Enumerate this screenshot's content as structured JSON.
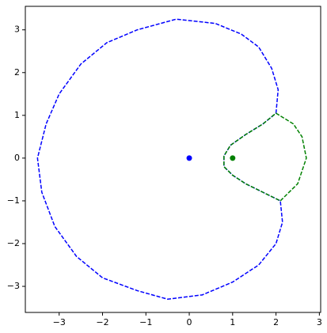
{
  "chart_data": {
    "type": "line",
    "xlim": [
      -3.78,
      3.03
    ],
    "ylim": [
      -3.61,
      3.55
    ],
    "xticks": [
      {
        "value": -3,
        "label": "−3"
      },
      {
        "value": -2,
        "label": "−2"
      },
      {
        "value": -1,
        "label": "−1"
      },
      0,
      1,
      2,
      3
    ],
    "yticks": [
      {
        "value": -3,
        "label": "−3"
      },
      {
        "value": -2,
        "label": "−2"
      },
      {
        "value": -1,
        "label": "−1"
      },
      0,
      1,
      2,
      3
    ],
    "grid": false,
    "series": [
      {
        "type": "line",
        "color": "#0000ff",
        "style": "dashed",
        "x": [
          2.0,
          2.05,
          1.9,
          1.6,
          1.2,
          0.6,
          -0.3,
          -1.2,
          -1.9,
          -2.5,
          -3.0,
          -3.3,
          -3.5,
          -3.4,
          -3.1,
          -2.6,
          -2.0,
          -1.2,
          -0.5,
          0.3,
          1.0,
          1.6,
          2.0,
          2.15,
          2.1,
          1.7,
          1.3,
          1.0,
          0.8,
          0.8,
          0.95,
          1.3,
          1.7,
          2.0
        ],
        "values": [
          1.05,
          1.6,
          2.1,
          2.6,
          2.9,
          3.15,
          3.25,
          3.0,
          2.7,
          2.2,
          1.5,
          0.8,
          0,
          -0.8,
          -1.6,
          -2.3,
          -2.8,
          -3.1,
          -3.3,
          -3.2,
          -2.9,
          -2.5,
          -2.0,
          -1.5,
          -1.0,
          -0.8,
          -0.6,
          -0.4,
          -0.2,
          0.05,
          0.3,
          0.55,
          0.8,
          1.05
        ]
      },
      {
        "type": "line",
        "color": "#008000",
        "style": "dashed",
        "x": [
          2.1,
          2.5,
          2.7,
          2.6,
          2.4,
          2.0,
          1.7,
          1.3,
          0.95,
          0.8,
          0.8,
          1.0,
          1.3,
          1.7,
          2.1
        ],
        "values": [
          -1.0,
          -0.6,
          0,
          0.5,
          0.8,
          1.05,
          0.8,
          0.55,
          0.3,
          0.05,
          -0.2,
          -0.4,
          -0.6,
          -0.8,
          -1.0
        ]
      },
      {
        "type": "scatter",
        "color": "#0000ff",
        "x": [
          0
        ],
        "values": [
          0
        ]
      },
      {
        "type": "scatter",
        "color": "#008000",
        "x": [
          1
        ],
        "values": [
          0
        ]
      }
    ]
  }
}
